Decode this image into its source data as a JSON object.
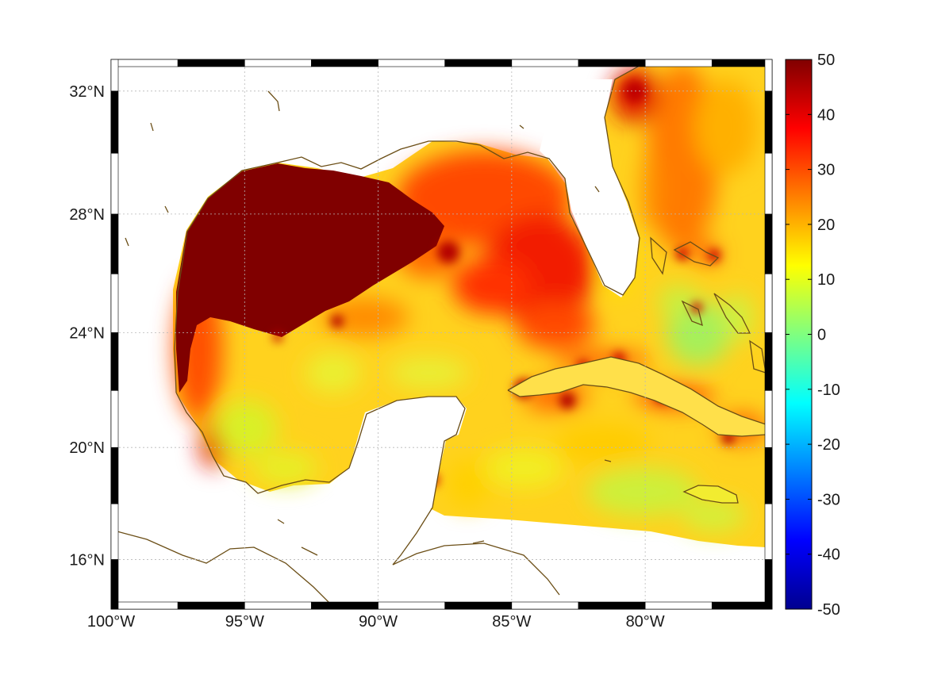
{
  "map": {
    "lon_range": [
      -100,
      -75.25
    ],
    "lat_range": [
      14.2,
      33.0
    ],
    "projection": "mercator",
    "grid": true,
    "x_ticks": [
      {
        "lon": -100,
        "label": "100°W"
      },
      {
        "lon": -95,
        "label": "95°W"
      },
      {
        "lon": -90,
        "label": "90°W"
      },
      {
        "lon": -85,
        "label": "85°W"
      },
      {
        "lon": -80,
        "label": "80°W"
      }
    ],
    "y_ticks": [
      {
        "lat": 32,
        "label": "32°N"
      },
      {
        "lat": 28,
        "label": "28°N"
      },
      {
        "lat": 24,
        "label": "24°N"
      },
      {
        "lat": 20,
        "label": "20°N"
      },
      {
        "lat": 16,
        "label": "16°N"
      }
    ]
  },
  "colorbar": {
    "colormap": "jet",
    "range": [
      -50,
      50
    ],
    "ticks": [
      {
        "value": 50,
        "label": "50"
      },
      {
        "value": 40,
        "label": "40"
      },
      {
        "value": 30,
        "label": "30"
      },
      {
        "value": 20,
        "label": "20"
      },
      {
        "value": 10,
        "label": "10"
      },
      {
        "value": 0,
        "label": "0"
      },
      {
        "value": -10,
        "label": "-10"
      },
      {
        "value": -20,
        "label": "-20"
      },
      {
        "value": -30,
        "label": "-30"
      },
      {
        "value": -40,
        "label": "-40"
      },
      {
        "value": -50,
        "label": "-50"
      }
    ]
  },
  "colors": {
    "coastline": "#6b4e16",
    "saturated_max": "#800000",
    "frame": "#000000"
  }
}
